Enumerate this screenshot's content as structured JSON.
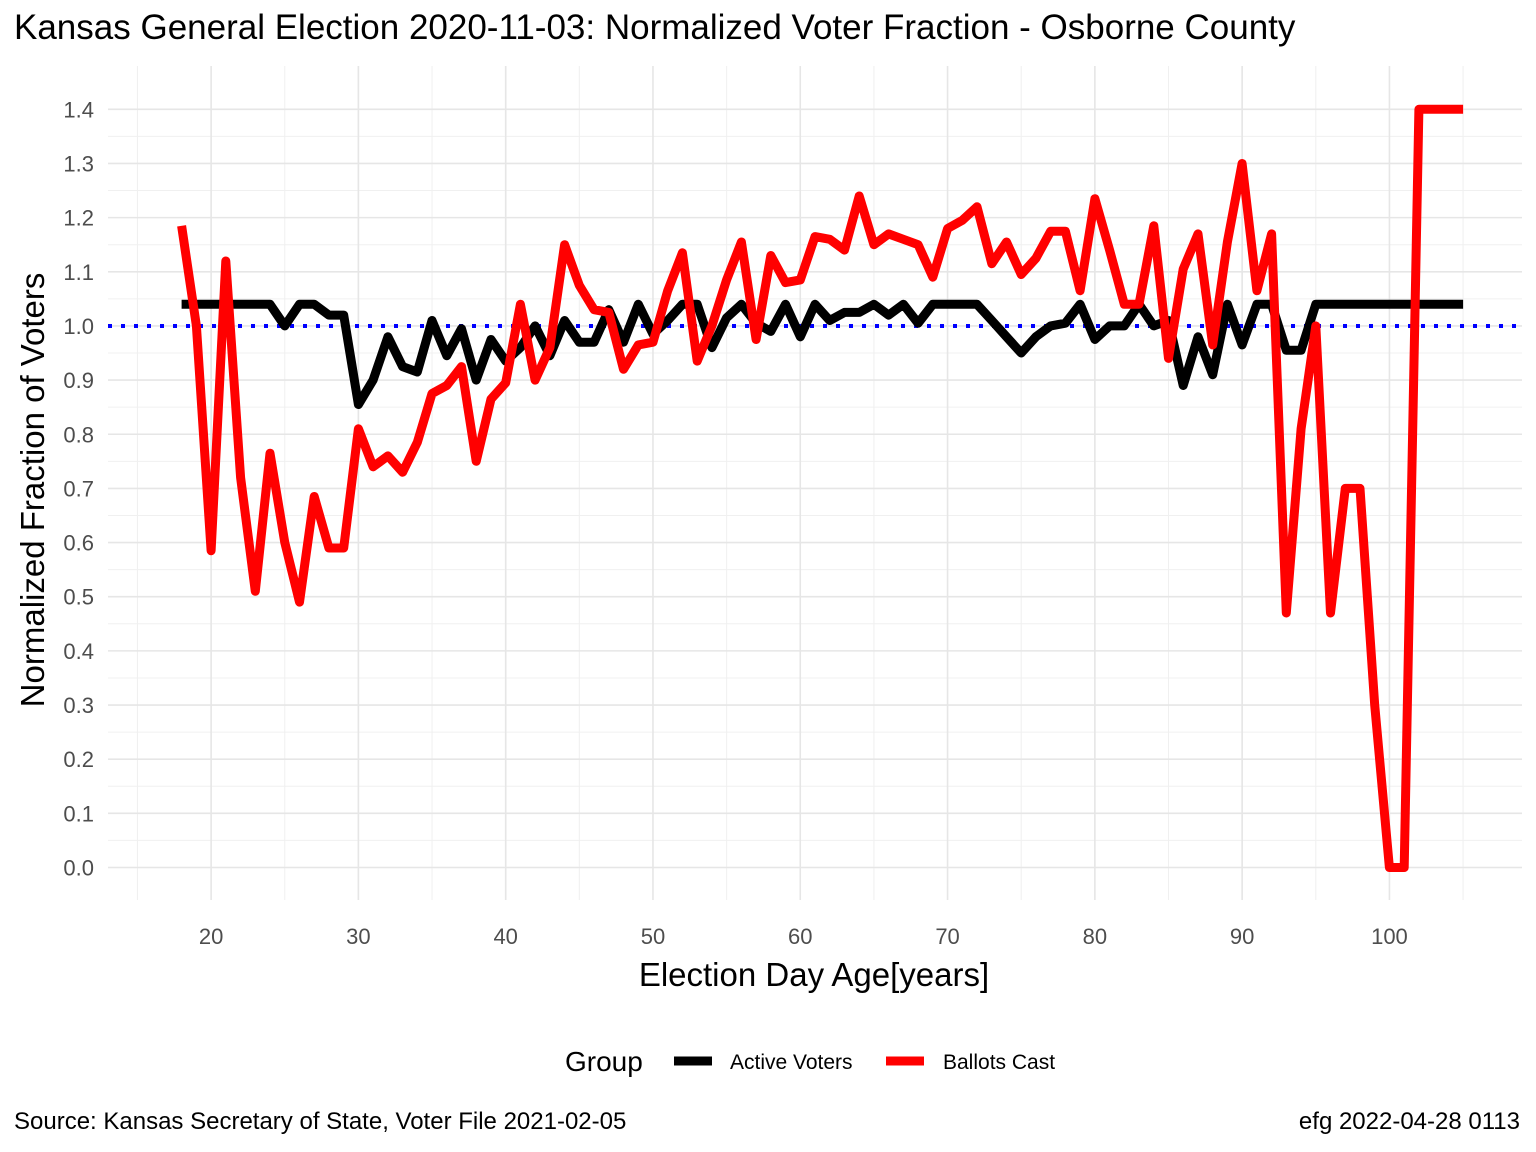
{
  "title": "Kansas General Election 2020-11-03:  Normalized Voter Fraction - Osborne County",
  "caption_left": "Source:  Kansas Secretary of State, Voter File  2021-02-05",
  "caption_right": "efg 2022-04-28 0113",
  "chart_data": {
    "type": "line",
    "xlabel": "Election Day Age[years]",
    "ylabel": "Normalized Fraction of Voters",
    "xlim": [
      13,
      109
    ],
    "ylim": [
      -0.06,
      1.48
    ],
    "x_ticks": [
      20,
      30,
      40,
      50,
      60,
      70,
      80,
      90,
      100
    ],
    "y_ticks": [
      0.0,
      0.1,
      0.2,
      0.3,
      0.4,
      0.5,
      0.6,
      0.7,
      0.8,
      0.9,
      1.0,
      1.1,
      1.2,
      1.3,
      1.4
    ],
    "x_tick_labels": [
      "20",
      "30",
      "40",
      "50",
      "60",
      "70",
      "80",
      "90",
      "100"
    ],
    "y_tick_labels": [
      "0.0",
      "0.1",
      "0.2",
      "0.3",
      "0.4",
      "0.5",
      "0.6",
      "0.7",
      "0.8",
      "0.9",
      "1.0",
      "1.1",
      "1.2",
      "1.3",
      "1.4"
    ],
    "grid": true,
    "reference_line": {
      "y": 1.0,
      "color": "#0000ff",
      "style": "dotted"
    },
    "legend": {
      "title": "Group",
      "position": "bottom"
    },
    "x": [
      18,
      19,
      20,
      21,
      22,
      23,
      24,
      25,
      26,
      27,
      28,
      29,
      30,
      31,
      32,
      33,
      34,
      35,
      36,
      37,
      38,
      39,
      40,
      41,
      42,
      43,
      44,
      45,
      46,
      47,
      48,
      49,
      50,
      51,
      52,
      53,
      54,
      55,
      56,
      57,
      58,
      59,
      60,
      61,
      62,
      63,
      64,
      65,
      66,
      67,
      68,
      69,
      70,
      71,
      72,
      73,
      74,
      75,
      76,
      77,
      78,
      79,
      80,
      81,
      82,
      83,
      84,
      85,
      86,
      87,
      88,
      89,
      90,
      91,
      92,
      93,
      94,
      95,
      96,
      97,
      98,
      99,
      100,
      101,
      102,
      103,
      104,
      105
    ],
    "series": [
      {
        "name": "Active Voters",
        "color": "#000000",
        "values": [
          1.04,
          1.04,
          1.04,
          1.04,
          1.04,
          1.04,
          1.04,
          1.0,
          1.04,
          1.04,
          1.02,
          1.02,
          0.855,
          0.9,
          0.98,
          0.925,
          0.915,
          1.01,
          0.945,
          0.995,
          0.9,
          0.975,
          0.935,
          0.96,
          1.0,
          0.945,
          1.01,
          0.97,
          0.97,
          1.03,
          0.97,
          1.04,
          0.985,
          1.01,
          1.04,
          1.04,
          0.96,
          1.015,
          1.04,
          1.005,
          0.99,
          1.04,
          0.98,
          1.04,
          1.01,
          1.025,
          1.025,
          1.04,
          1.02,
          1.04,
          1.005,
          1.04,
          1.04,
          1.04,
          1.04,
          1.01,
          0.98,
          0.95,
          0.98,
          1.0,
          1.005,
          1.04,
          0.975,
          1.0,
          1.0,
          1.04,
          1.0,
          1.01,
          0.89,
          0.98,
          0.91,
          1.04,
          0.965,
          1.04,
          1.04,
          0.955,
          0.955,
          1.04,
          1.04,
          1.04,
          1.04,
          1.04,
          1.04,
          1.04,
          1.04,
          1.04,
          1.04,
          1.04
        ]
      },
      {
        "name": "Ballots Cast",
        "color": "#ff0000",
        "values": [
          1.185,
          1.0,
          0.585,
          1.12,
          0.72,
          0.51,
          0.765,
          0.6,
          0.49,
          0.685,
          0.59,
          0.59,
          0.81,
          0.74,
          0.76,
          0.73,
          0.785,
          0.875,
          0.89,
          0.925,
          0.75,
          0.865,
          0.895,
          1.04,
          0.9,
          0.96,
          1.15,
          1.075,
          1.03,
          1.025,
          0.92,
          0.965,
          0.97,
          1.065,
          1.135,
          0.935,
          1.0,
          1.085,
          1.155,
          0.975,
          1.13,
          1.08,
          1.085,
          1.165,
          1.16,
          1.14,
          1.24,
          1.15,
          1.17,
          1.16,
          1.15,
          1.09,
          1.18,
          1.195,
          1.22,
          1.115,
          1.155,
          1.095,
          1.125,
          1.175,
          1.175,
          1.065,
          1.235,
          1.14,
          1.04,
          1.04,
          1.185,
          0.94,
          1.105,
          1.17,
          0.965,
          1.155,
          1.3,
          1.065,
          1.17,
          0.47,
          0.81,
          1.0,
          0.47,
          0.7,
          0.7,
          0.3,
          0.0,
          0.0,
          1.4,
          1.4,
          1.4,
          1.4
        ]
      }
    ]
  }
}
